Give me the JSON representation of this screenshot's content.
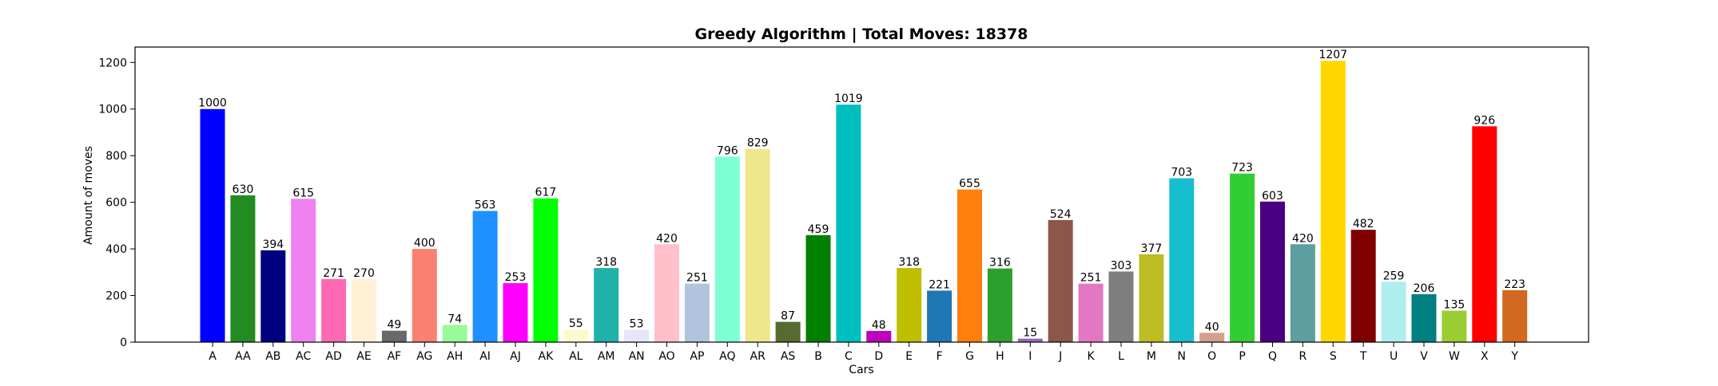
{
  "chart_data": {
    "type": "bar",
    "title": "Greedy Algorithm | Total Moves: 18378",
    "xlabel": "Cars",
    "ylabel": "Amount of moves",
    "ylim": [
      0,
      1266
    ],
    "yticks": [
      0,
      200,
      400,
      600,
      800,
      1000,
      1200
    ],
    "grid": false,
    "categories": [
      "A",
      "AA",
      "AB",
      "AC",
      "AD",
      "AE",
      "AF",
      "AG",
      "AH",
      "AI",
      "AJ",
      "AK",
      "AL",
      "AM",
      "AN",
      "AO",
      "AP",
      "AQ",
      "AR",
      "AS",
      "B",
      "C",
      "D",
      "E",
      "F",
      "G",
      "H",
      "I",
      "J",
      "K",
      "L",
      "M",
      "N",
      "O",
      "P",
      "Q",
      "R",
      "S",
      "T",
      "U",
      "V",
      "W",
      "X",
      "Y"
    ],
    "values": [
      1000,
      630,
      394,
      615,
      271,
      270,
      49,
      400,
      74,
      563,
      253,
      617,
      55,
      318,
      53,
      420,
      251,
      796,
      829,
      87,
      459,
      1019,
      48,
      318,
      221,
      655,
      316,
      15,
      524,
      251,
      303,
      377,
      703,
      40,
      723,
      603,
      420,
      1207,
      482,
      259,
      206,
      135,
      926,
      223
    ],
    "colors": [
      "#0000ff",
      "#228b22",
      "#000080",
      "#ee82ee",
      "#ff69b4",
      "#ffefd5",
      "#696969",
      "#fa8072",
      "#98fb98",
      "#1e90ff",
      "#ff00ff",
      "#00ff00",
      "#fffacd",
      "#20b2aa",
      "#e6e6fa",
      "#ffc0cb",
      "#b0c4de",
      "#7fffd4",
      "#f0e68c",
      "#556b2f",
      "#008000",
      "#00bfbf",
      "#bf00bf",
      "#bfbf00",
      "#1f77b4",
      "#ff7f0e",
      "#2ca02c",
      "#9467bd",
      "#8c564b",
      "#e377c2",
      "#7f7f7f",
      "#bcbd22",
      "#17becf",
      "#d2a08c",
      "#32cd32",
      "#4b0082",
      "#5f9ea0",
      "#ffd700",
      "#800000",
      "#afeeee",
      "#008080",
      "#9acd32",
      "#ff0000",
      "#d2691e"
    ]
  }
}
